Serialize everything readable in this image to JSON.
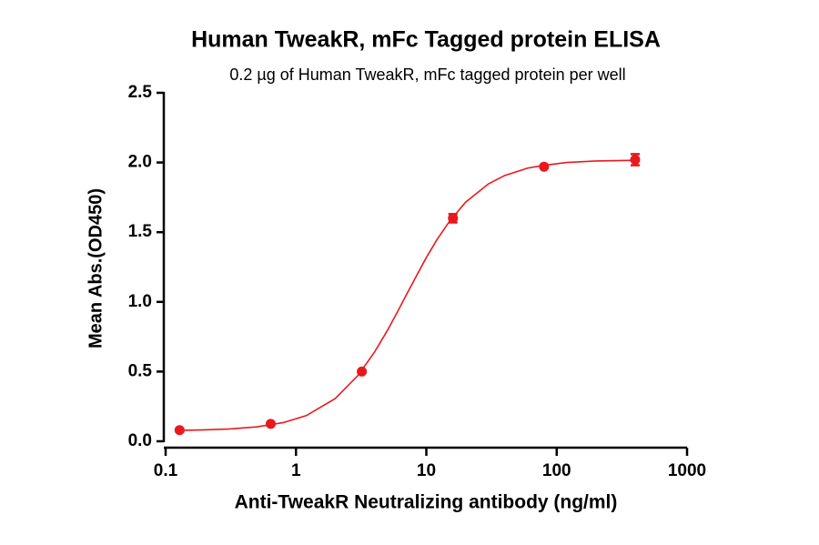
{
  "chart_data": {
    "type": "scatter",
    "title": "Human TweakR,  mFc Tagged protein ELISA",
    "subtitle": "0.2 µg of Human TweakR, mFc tagged protein per well",
    "x_label": "Anti-TweakR Neutralizing antibody (ng/ml)",
    "y_label": "Mean Abs.(OD450)",
    "x_scale": "log",
    "xlim": [
      0.1,
      1000
    ],
    "xticks": [
      0.1,
      1,
      10,
      100,
      1000
    ],
    "ylim": [
      0,
      2.5
    ],
    "yticks": [
      {
        "value": 0,
        "label": "0.0"
      },
      {
        "value": 0.5,
        "label": "0.5"
      },
      {
        "value": 1,
        "label": "1.0"
      },
      {
        "value": 1.5,
        "label": "1.5"
      },
      {
        "value": 2,
        "label": "2.0"
      },
      {
        "value": 2.5,
        "label": "2.5"
      }
    ],
    "series": [
      {
        "style": "points",
        "color": "#e8191d",
        "x": [
          0.128,
          0.64,
          3.2,
          16,
          80,
          400
        ],
        "values": [
          0.08,
          0.125,
          0.5,
          1.6,
          1.97,
          2.02
        ],
        "errors": [
          0.01,
          0.01,
          0.01,
          0.03,
          0.01,
          0.04
        ]
      },
      {
        "style": "line",
        "color": "#e8191d",
        "x": [
          0.128,
          0.2,
          0.3,
          0.5,
          0.8,
          1.2,
          2,
          3,
          4,
          5,
          6,
          7,
          8,
          10,
          12,
          15,
          20,
          30,
          40,
          60,
          80,
          120,
          200,
          400
        ],
        "values": [
          0.078,
          0.082,
          0.0875,
          0.103,
          0.134,
          0.184,
          0.306,
          0.474,
          0.639,
          0.791,
          0.928,
          1.048,
          1.15,
          1.318,
          1.443,
          1.576,
          1.715,
          1.847,
          1.907,
          1.96,
          1.98,
          2.0,
          2.011,
          2.016
        ]
      }
    ]
  }
}
